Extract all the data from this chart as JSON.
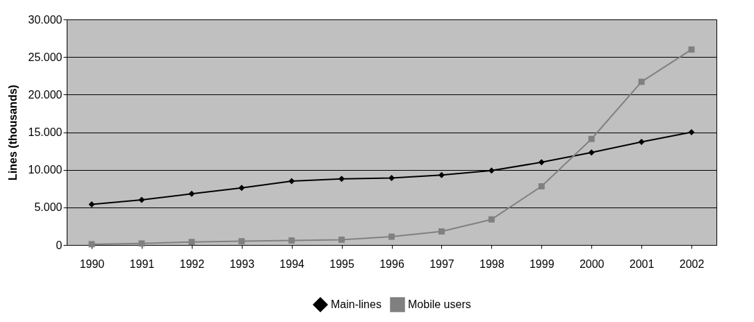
{
  "chart_data": {
    "type": "line",
    "ylabel": "Lines (thousands)",
    "categories": [
      "1990",
      "1991",
      "1992",
      "1993",
      "1994",
      "1995",
      "1996",
      "1997",
      "1998",
      "1999",
      "2000",
      "2001",
      "2002"
    ],
    "series": [
      {
        "name": "Main-lines",
        "color": "#000000",
        "marker": "diamond",
        "values": [
          5400,
          6000,
          6800,
          7600,
          8500,
          8800,
          8900,
          9300,
          9900,
          11000,
          12300,
          13700,
          15000
        ]
      },
      {
        "name": "Mobile users",
        "color": "#808080",
        "marker": "square",
        "values": [
          100,
          200,
          400,
          500,
          600,
          700,
          1100,
          1800,
          3400,
          7800,
          14100,
          21700,
          26000
        ]
      }
    ],
    "ylim": [
      0,
      30000
    ],
    "yticks": [
      0,
      {
        "value": 5000,
        "label": "5.000"
      },
      {
        "value": 10000,
        "label": "10.000"
      },
      {
        "value": 15000,
        "label": "15.000"
      },
      {
        "value": 20000,
        "label": "20.000"
      },
      {
        "value": 25000,
        "label": "25.000"
      },
      {
        "value": 30000,
        "label": "30.000"
      }
    ],
    "grid": "y",
    "legend": "bottom",
    "line_style": "solid"
  }
}
